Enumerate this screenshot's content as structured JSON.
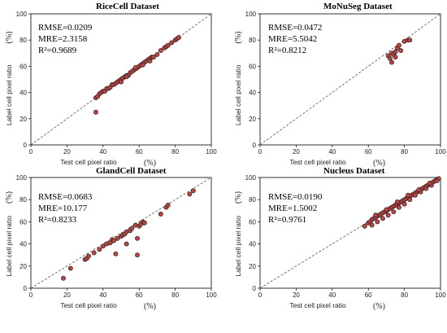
{
  "chart_data": [
    {
      "type": "scatter",
      "title": "RiceCell Dataset",
      "xlabel": "Test cell pixel ratio",
      "ylabel": "Label cell pixel ratio",
      "unit": "(%)",
      "xlim": [
        0,
        100
      ],
      "ylim": [
        0,
        100
      ],
      "xticks": [
        "0",
        "20",
        "40",
        "60",
        "80",
        "100"
      ],
      "yticks": [
        "0",
        "20",
        "40",
        "60",
        "80",
        "100"
      ],
      "stats": [
        "RMSE=0.0209",
        "MRE=2.3158",
        "R²=0.9689"
      ],
      "reference_line": "y = x",
      "x": [
        36,
        37,
        38,
        39,
        40,
        41,
        42,
        43,
        44,
        45,
        46,
        47,
        48,
        49,
        50,
        51,
        52,
        53,
        54,
        55,
        56,
        57,
        58,
        59,
        60,
        61,
        62,
        63,
        64,
        65,
        66,
        67,
        68,
        70,
        72,
        74,
        75,
        76,
        78,
        80,
        81,
        82,
        50,
        53,
        58,
        62,
        66,
        36
      ],
      "y": [
        36,
        37,
        39,
        40,
        41,
        41,
        43,
        43,
        44,
        46,
        46,
        47,
        48,
        49,
        50,
        51,
        52,
        53,
        53,
        55,
        56,
        57,
        58,
        59,
        60,
        61,
        62,
        63,
        64,
        65,
        66,
        67,
        67,
        69,
        72,
        74,
        75,
        76,
        78,
        80,
        81,
        82,
        48,
        52,
        59,
        61,
        64,
        25
      ]
    },
    {
      "type": "scatter",
      "title": "MoNuSeg Dataset",
      "xlabel": "Test cell pixel ratio",
      "ylabel": "Label cell pixel ratio",
      "unit": "(%)",
      "xlim": [
        0,
        100
      ],
      "ylim": [
        0,
        100
      ],
      "xticks": [
        "0",
        "20",
        "40",
        "60",
        "80",
        "100"
      ],
      "yticks": [
        "0",
        "20",
        "40",
        "60",
        "80",
        "100"
      ],
      "stats": [
        "RMSE=0.0472",
        "MRE=5.5042",
        "R²=0.8212"
      ],
      "reference_line": "y = x",
      "x": [
        71,
        72,
        73,
        74,
        75,
        76,
        77,
        78,
        80,
        82,
        83,
        73,
        75
      ],
      "y": [
        68,
        66,
        70,
        69,
        71,
        74,
        76,
        72,
        79,
        80,
        80,
        63,
        67
      ]
    },
    {
      "type": "scatter",
      "title": "GlandCell Dataset",
      "xlabel": "Test cell pixel ratio",
      "ylabel": "Label cell pixel ratio",
      "unit": "(%)",
      "xlim": [
        0,
        100
      ],
      "ylim": [
        0,
        100
      ],
      "xticks": [
        "0",
        "20",
        "40",
        "60",
        "80",
        "100"
      ],
      "yticks": [
        "0",
        "20",
        "40",
        "60",
        "80",
        "100"
      ],
      "stats": [
        "RMSE=0.0683",
        "MRE=10.177",
        "R²=0.8233"
      ],
      "reference_line": "y = x",
      "x": [
        18,
        22,
        30,
        31,
        32,
        35,
        38,
        40,
        42,
        44,
        45,
        46,
        48,
        50,
        51,
        52,
        53,
        55,
        56,
        58,
        59,
        60,
        61,
        62,
        63,
        72,
        75,
        76,
        88,
        90,
        47,
        53,
        59
      ],
      "y": [
        9,
        18,
        26,
        27,
        29,
        32,
        35,
        38,
        40,
        41,
        44,
        43,
        45,
        47,
        48,
        49,
        51,
        52,
        54,
        57,
        30,
        56,
        58,
        60,
        59,
        67,
        73,
        75,
        85,
        88,
        31,
        40,
        45
      ]
    },
    {
      "type": "scatter",
      "title": "Nucleus Dataset",
      "xlabel": "Test cell pixel ratio",
      "ylabel": "Label cell pixel ratio",
      "unit": "(%)",
      "xlim": [
        0,
        100
      ],
      "ylim": [
        0,
        100
      ],
      "xticks": [
        "0",
        "20",
        "40",
        "60",
        "80",
        "100"
      ],
      "yticks": [
        "0",
        "20",
        "40",
        "60",
        "80",
        "100"
      ],
      "stats": [
        "RMSE=0.0190",
        "MRE=1.5002",
        "R²=0.9761"
      ],
      "reference_line": "y = x",
      "x": [
        58,
        60,
        61,
        62,
        63,
        64,
        65,
        66,
        67,
        68,
        69,
        70,
        71,
        72,
        73,
        74,
        75,
        76,
        77,
        78,
        79,
        80,
        81,
        82,
        83,
        84,
        85,
        86,
        87,
        88,
        89,
        90,
        91,
        92,
        93,
        94,
        95,
        96,
        97,
        98,
        99,
        62,
        65,
        68,
        71,
        74,
        77,
        80,
        83,
        86,
        89,
        92,
        95,
        98,
        64,
        70,
        76,
        82,
        88,
        94
      ],
      "y": [
        56,
        59,
        60,
        62,
        63,
        64,
        65,
        66,
        67,
        68,
        69,
        70,
        71,
        72,
        73,
        74,
        75,
        76,
        77,
        78,
        79,
        80,
        81,
        82,
        83,
        84,
        85,
        86,
        87,
        88,
        89,
        90,
        91,
        92,
        93,
        94,
        95,
        96,
        97,
        98,
        99,
        57,
        60,
        63,
        66,
        69,
        73,
        76,
        80,
        84,
        87,
        90,
        93,
        97,
        66,
        71,
        78,
        84,
        89,
        95
      ]
    }
  ]
}
